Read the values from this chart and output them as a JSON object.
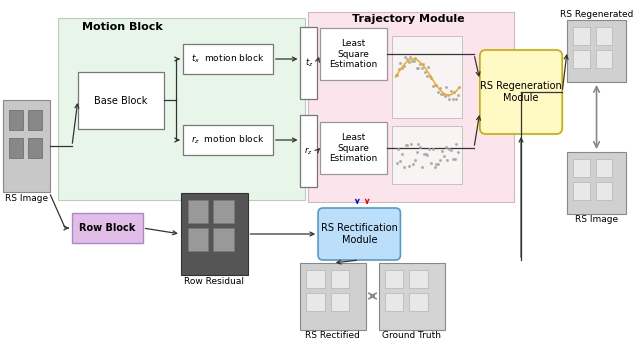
{
  "bg_color": "#ffffff",
  "motion_block_bg": "#e8f5e9",
  "trajectory_module_bg": "#fce4ec",
  "row_block_color": "#e1bee7",
  "regen_module_color": "#fff9c4",
  "rectif_module_color": "#bbdefb",
  "motion_block_label": "Motion Block",
  "trajectory_module_label": "Trajectory Module",
  "base_block_label": "Base Block",
  "tx_motion_label": "$t_x$  motion block",
  "rz_motion_label": "$r_z$  motion block",
  "tx_out_label": "$t_z$",
  "rz_out_label": "$r_z$",
  "lse_label": "Least\nSquare\nEstimation",
  "regen_module_label": "RS Regeneration\nModule",
  "rectif_module_label": "RS Rectification\nModule",
  "row_block_label": "Row Block",
  "rs_image_label": "RS Image",
  "row_residual_label": "Row Residual",
  "rs_rectified_label": "RS Rectified",
  "ground_truth_label": "Ground Truth",
  "rs_regenerated_label": "RS Regenerated",
  "rs_image_right_label": "RS Image",
  "arrow_color": "#333333",
  "box_edge_color": "#777777"
}
